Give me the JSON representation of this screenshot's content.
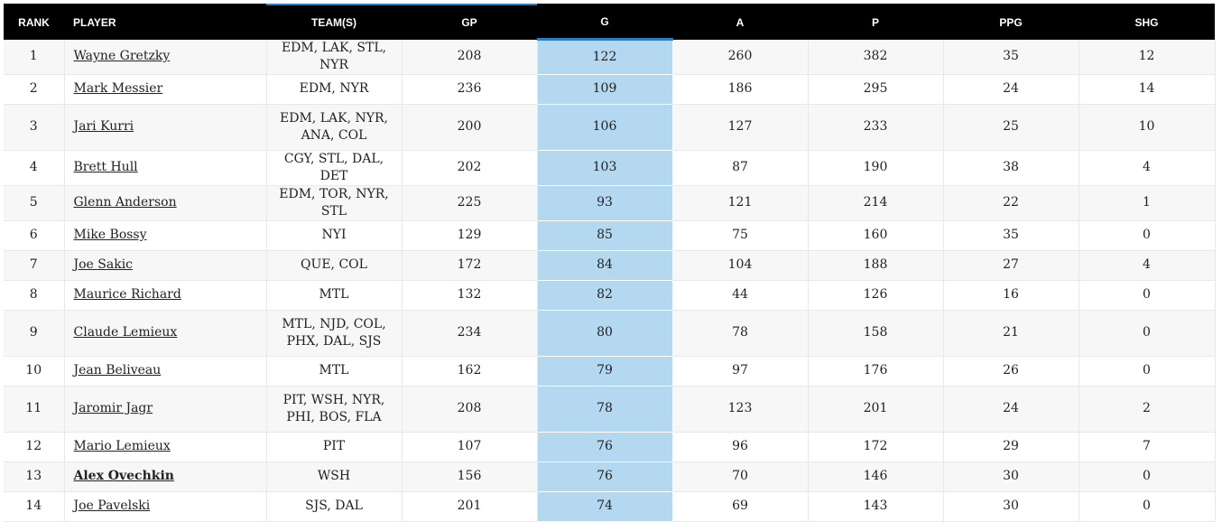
{
  "table": {
    "headers": [
      "RANK",
      "PLAYER",
      "TEAM(S)",
      "GP",
      "G",
      "A",
      "P",
      "PPG",
      "SHG"
    ],
    "rows": [
      [
        1,
        "Wayne Gretzky",
        "EDM, LAK, STL, NYR",
        208,
        122,
        260,
        382,
        35,
        12
      ],
      [
        2,
        "Mark Messier",
        "EDM, NYR",
        236,
        109,
        186,
        295,
        24,
        14
      ],
      [
        3,
        "Jari Kurri",
        "EDM, LAK, NYR, ANA, COL",
        200,
        106,
        127,
        233,
        25,
        10
      ],
      [
        4,
        "Brett Hull",
        "CGY, STL, DAL, DET",
        202,
        103,
        87,
        190,
        38,
        4
      ],
      [
        5,
        "Glenn Anderson",
        "EDM, TOR, NYR, STL",
        225,
        93,
        121,
        214,
        22,
        1
      ],
      [
        6,
        "Mike Bossy",
        "NYI",
        129,
        85,
        75,
        160,
        35,
        0
      ],
      [
        7,
        "Joe Sakic",
        "QUE, COL",
        172,
        84,
        104,
        188,
        27,
        4
      ],
      [
        8,
        "Maurice Richard",
        "MTL",
        132,
        82,
        44,
        126,
        16,
        0
      ],
      [
        9,
        "Claude Lemieux",
        "MTL, NJD, COL, PHX, DAL, SJS",
        234,
        80,
        78,
        158,
        21,
        0
      ],
      [
        10,
        "Jean Beliveau",
        "MTL",
        162,
        79,
        97,
        176,
        26,
        0
      ],
      [
        11,
        "Jaromir Jagr",
        "PIT, WSH, NYR, PHI, BOS, FLA",
        208,
        78,
        123,
        201,
        24,
        2
      ],
      [
        12,
        "Mario Lemieux",
        "PIT",
        107,
        76,
        96,
        172,
        29,
        7
      ],
      [
        13,
        "Alex Ovechkin",
        "WSH",
        156,
        76,
        70,
        146,
        30,
        0
      ],
      [
        14,
        "Joe Pavelski",
        "SJS, DAL",
        201,
        74,
        69,
        143,
        30,
        0
      ]
    ]
  }
}
